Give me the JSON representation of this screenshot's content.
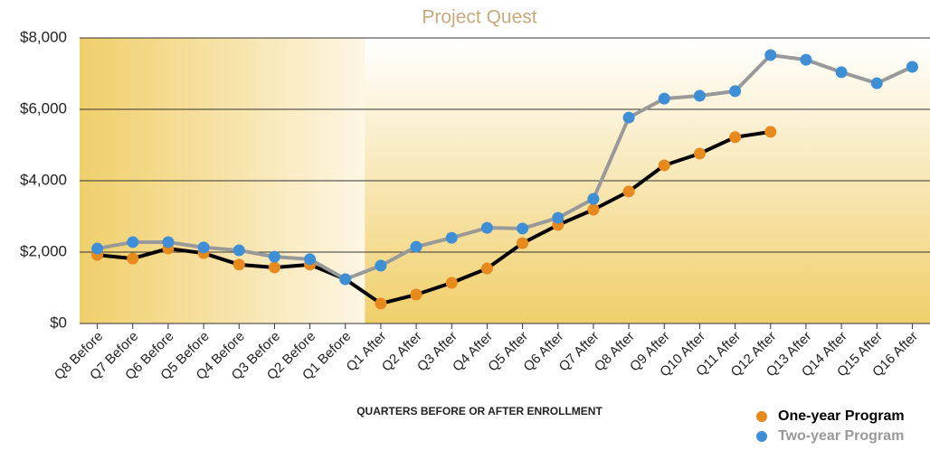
{
  "chart_data": {
    "type": "line",
    "title": "Project Quest",
    "x_label": "QUARTERS BEFORE OR AFTER ENROLLMENT",
    "categories": [
      "Q8 Before",
      "Q7 Before",
      "Q6 Before",
      "Q5 Before",
      "Q4 Before",
      "Q3 Before",
      "Q2 Before",
      "Q1 Before",
      "Q1 After",
      "Q2 After",
      "Q3 After",
      "Q4 After",
      "Q5 After",
      "Q6 After",
      "Q7 After",
      "Q8 After",
      "Q9 After",
      "Q10 After",
      "Q11 After",
      "Q12 After",
      "Q13 After",
      "Q14 After",
      "Q15 After",
      "Q16 After"
    ],
    "series": [
      {
        "name": "One-year Program",
        "color": "#e8891e",
        "line_color": "#000000",
        "values": [
          1920,
          1820,
          2100,
          1970,
          1650,
          1570,
          1650,
          1240,
          560,
          810,
          1140,
          1540,
          2250,
          2760,
          3190,
          3700,
          4430,
          4760,
          5220,
          5370,
          null,
          null,
          null,
          null
        ]
      },
      {
        "name": "Two-year Program",
        "color": "#3e8fd6",
        "line_color": "#999999",
        "values": [
          2100,
          2280,
          2280,
          2130,
          2050,
          1870,
          1800,
          1240,
          1620,
          2150,
          2400,
          2680,
          2660,
          2960,
          3490,
          5770,
          6300,
          6380,
          6510,
          7520,
          7390,
          7040,
          6730,
          7190
        ]
      }
    ],
    "ylim": [
      0,
      8000
    ],
    "yticks": [
      {
        "value": 0,
        "label": "$0"
      },
      {
        "value": 2000,
        "label": "$2,000"
      },
      {
        "value": 4000,
        "label": "$4,000"
      },
      {
        "value": 6000,
        "label": "$6,000"
      },
      {
        "value": 8000,
        "label": "$8,000"
      }
    ],
    "grid": true
  }
}
